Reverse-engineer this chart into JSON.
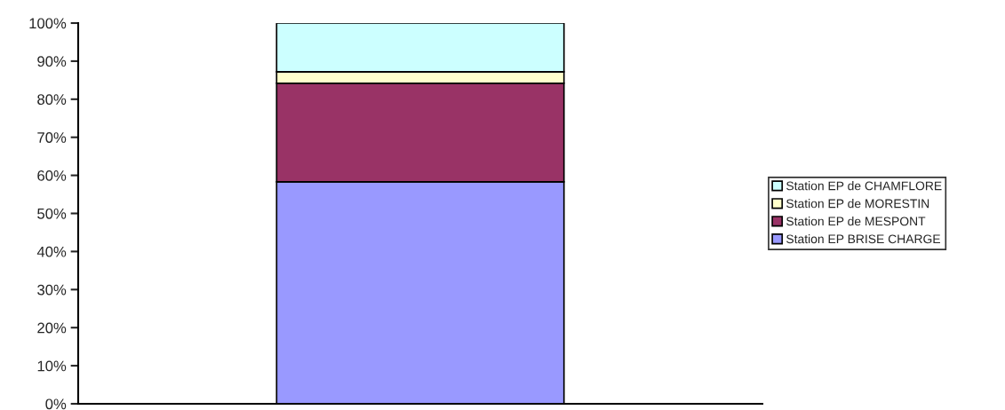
{
  "chart_data": {
    "type": "bar",
    "stacked": true,
    "categories": [
      null
    ],
    "series": [
      {
        "name": "Station EP BRISE CHARGE",
        "color": "#9999ff",
        "values": [
          58.3
        ]
      },
      {
        "name": "Station EP de MESPONT",
        "color": "#993366",
        "values": [
          25.9
        ]
      },
      {
        "name": "Station EP de MORESTIN",
        "color": "#ffffcc",
        "values": [
          3.0
        ]
      },
      {
        "name": "Station EP de CHAMFLORE",
        "color": "#ccffff",
        "values": [
          12.8
        ]
      }
    ],
    "ylim": [
      0,
      100
    ],
    "yticks": [
      {
        "value": 0,
        "label": "0%"
      },
      {
        "value": 10,
        "label": "10%"
      },
      {
        "value": 20,
        "label": "20%"
      },
      {
        "value": 30,
        "label": "30%"
      },
      {
        "value": 40,
        "label": "40%"
      },
      {
        "value": 50,
        "label": "50%"
      },
      {
        "value": 60,
        "label": "60%"
      },
      {
        "value": 70,
        "label": "70%"
      },
      {
        "value": 80,
        "label": "80%"
      },
      {
        "value": 90,
        "label": "90%"
      },
      {
        "value": 100,
        "label": "100%"
      }
    ],
    "legend": "right",
    "grid": false
  }
}
